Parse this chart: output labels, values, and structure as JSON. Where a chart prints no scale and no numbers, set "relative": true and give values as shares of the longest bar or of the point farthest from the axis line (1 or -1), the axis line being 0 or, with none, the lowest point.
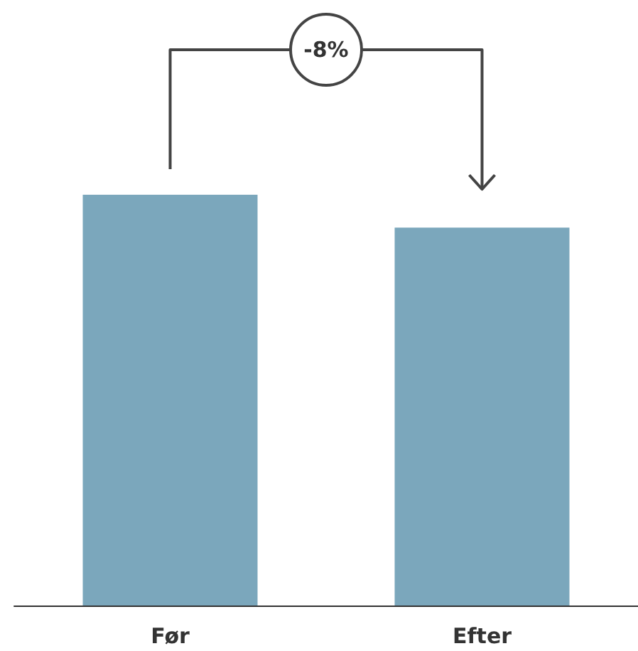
{
  "chart_data": {
    "type": "bar",
    "relative": true,
    "categories": [
      "Før",
      "Efter"
    ],
    "values": [
      1,
      0.92
    ],
    "color": "#7ba7bc",
    "annotations": [
      "-8%"
    ]
  }
}
